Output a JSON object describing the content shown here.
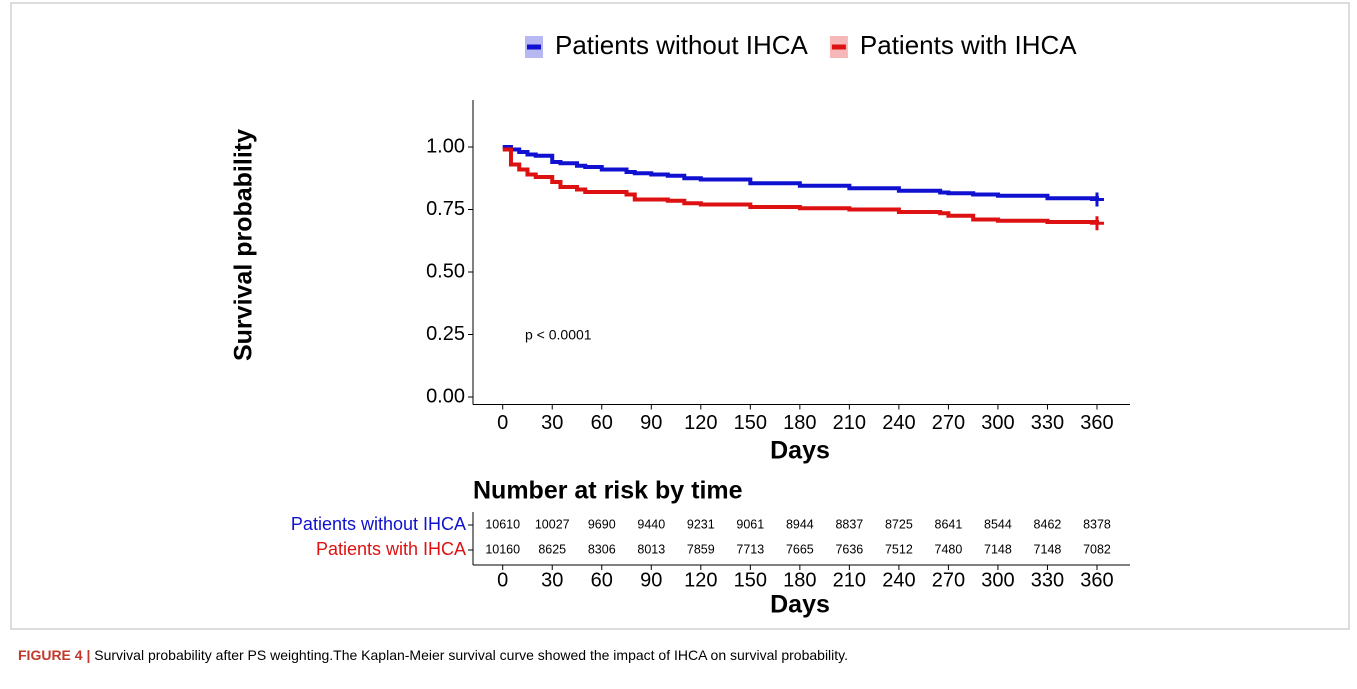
{
  "chart_data": {
    "type": "line",
    "step": true,
    "xlabel": "Days",
    "ylabel": "Survival probability",
    "annotation": "p < 0.0001",
    "x": [
      0,
      5,
      10,
      15,
      20,
      30,
      35,
      45,
      50,
      60,
      75,
      80,
      90,
      100,
      110,
      120,
      150,
      180,
      210,
      240,
      265,
      270,
      285,
      300,
      330,
      360
    ],
    "series": [
      {
        "name": "Patients without IHCA",
        "color": "#1010d0",
        "values": [
          1.0,
          0.99,
          0.98,
          0.97,
          0.965,
          0.94,
          0.935,
          0.925,
          0.92,
          0.91,
          0.9,
          0.895,
          0.89,
          0.885,
          0.875,
          0.87,
          0.855,
          0.845,
          0.835,
          0.825,
          0.818,
          0.815,
          0.81,
          0.805,
          0.795,
          0.79
        ]
      },
      {
        "name": "Patients with IHCA",
        "color": "#dd1111",
        "values": [
          0.99,
          0.93,
          0.91,
          0.89,
          0.88,
          0.86,
          0.84,
          0.83,
          0.82,
          0.82,
          0.81,
          0.79,
          0.79,
          0.785,
          0.775,
          0.77,
          0.76,
          0.755,
          0.75,
          0.74,
          0.735,
          0.725,
          0.71,
          0.705,
          0.7,
          0.695
        ]
      }
    ],
    "xlim": [
      -18,
      380
    ],
    "xticks": [
      0,
      30,
      60,
      90,
      120,
      150,
      180,
      210,
      240,
      270,
      300,
      330,
      360
    ],
    "ylim": [
      -0.03,
      1.05
    ],
    "yticks": [
      {
        "value": 0,
        "label": "0.00"
      },
      {
        "value": 0.25,
        "label": "0.25"
      },
      {
        "value": 0.5,
        "label": "0.50"
      },
      {
        "value": 0.75,
        "label": "0.75"
      },
      {
        "value": 1,
        "label": "1.00"
      }
    ],
    "legend": "top"
  },
  "risk_table": {
    "title": "Number at risk by time",
    "xlabel": "Days",
    "times": [
      0,
      30,
      60,
      90,
      120,
      150,
      180,
      210,
      240,
      270,
      300,
      330,
      360
    ],
    "rows": [
      {
        "name": "Patients without IHCA",
        "color": "#1010d0",
        "values": [
          10610,
          10027,
          9690,
          9440,
          9231,
          9061,
          8944,
          8837,
          8725,
          8641,
          8544,
          8462,
          8378
        ]
      },
      {
        "name": "Patients with IHCA",
        "color": "#dd1111",
        "values": [
          10160,
          8625,
          8306,
          8013,
          7859,
          7713,
          7665,
          7636,
          7512,
          7480,
          7148,
          7148,
          7082
        ]
      }
    ]
  },
  "caption": {
    "label": "FIGURE 4 |",
    "text": "Survival probability after PS weighting.The Kaplan-Meier survival curve showed the impact of IHCA on survival probability."
  }
}
